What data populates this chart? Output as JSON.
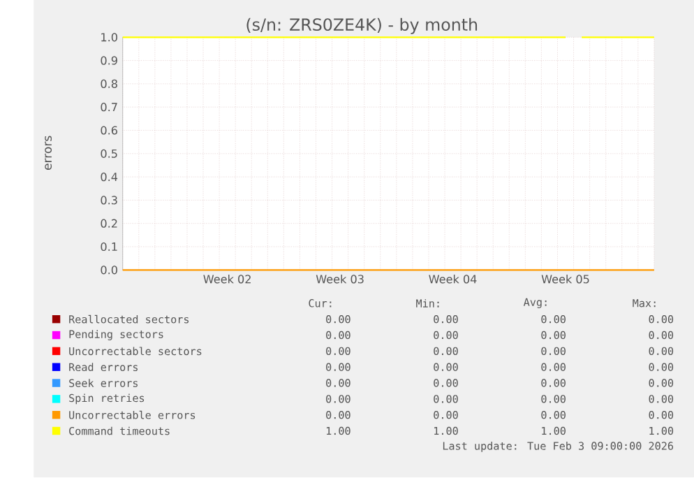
{
  "chart_data": {
    "type": "line",
    "title": "(s/n: ZRS0ZE4K) - by month",
    "ylabel": "errors",
    "categories": [
      null,
      null,
      null,
      null,
      null,
      null,
      null,
      null,
      null,
      null,
      null,
      null,
      null,
      "Week 02",
      null,
      null,
      null,
      null,
      null,
      null,
      null,
      null,
      null,
      null,
      null,
      null,
      null,
      "Week 03",
      null,
      null,
      null,
      null,
      null,
      null,
      null,
      null,
      null,
      null,
      null,
      null,
      null,
      "Week 04",
      null,
      null,
      null,
      null,
      null,
      null,
      null,
      null,
      null,
      null,
      null,
      null,
      null,
      "Week 05",
      null,
      null,
      null,
      null,
      null,
      null,
      null,
      null,
      null,
      null,
      null
    ],
    "ylim": [
      0,
      1
    ],
    "yticks": [
      {
        "value": 0,
        "label": "0.0"
      },
      {
        "value": 0.1,
        "label": "0.1"
      },
      {
        "value": 0.2,
        "label": "0.2"
      },
      {
        "value": 0.3,
        "label": "0.3"
      },
      {
        "value": 0.4,
        "label": "0.4"
      },
      {
        "value": 0.5,
        "label": "0.5"
      },
      {
        "value": 0.6,
        "label": "0.6"
      },
      {
        "value": 0.7,
        "label": "0.7"
      },
      {
        "value": 0.8,
        "label": "0.8"
      },
      {
        "value": 0.9,
        "label": "0.9"
      },
      {
        "value": 1,
        "label": "1.0"
      }
    ],
    "grid": true,
    "legend": "bottom",
    "series": [
      {
        "name": "Reallocated sectors",
        "color": "#990000",
        "values": [
          null,
          null,
          null,
          null,
          null,
          null,
          null,
          null,
          null,
          null,
          null,
          null,
          null,
          null,
          null,
          null,
          null,
          null,
          null,
          null,
          null,
          null,
          null,
          null,
          null,
          null,
          null,
          null,
          null,
          null,
          null,
          null,
          null,
          null,
          null,
          null,
          null,
          null,
          null,
          null,
          null,
          null,
          null,
          null,
          null,
          null,
          null,
          null,
          null,
          null,
          null,
          null,
          null,
          null,
          null,
          null,
          null,
          null,
          null,
          null,
          null,
          null,
          null,
          null,
          null,
          null,
          null
        ]
      },
      {
        "name": "Pending sectors",
        "color": "#ff00ff",
        "values": [
          null,
          null,
          null,
          null,
          null,
          null,
          null,
          null,
          null,
          null,
          null,
          null,
          null,
          null,
          null,
          null,
          null,
          null,
          null,
          null,
          null,
          null,
          null,
          null,
          null,
          null,
          null,
          null,
          null,
          null,
          null,
          null,
          null,
          null,
          null,
          null,
          null,
          null,
          null,
          null,
          null,
          null,
          null,
          null,
          null,
          null,
          null,
          null,
          null,
          null,
          null,
          null,
          null,
          null,
          null,
          null,
          null,
          null,
          null,
          null,
          null,
          null,
          null,
          null,
          null,
          null,
          null
        ]
      },
      {
        "name": "Uncorrectable sectors",
        "color": "#ff0000",
        "values": [
          null,
          null,
          null,
          null,
          null,
          null,
          null,
          null,
          null,
          null,
          null,
          null,
          null,
          null,
          null,
          null,
          null,
          null,
          null,
          null,
          null,
          null,
          null,
          null,
          null,
          null,
          null,
          null,
          null,
          null,
          null,
          null,
          null,
          null,
          null,
          null,
          null,
          null,
          null,
          null,
          null,
          null,
          null,
          null,
          null,
          null,
          null,
          null,
          null,
          null,
          null,
          null,
          null,
          null,
          null,
          null,
          null,
          null,
          null,
          null,
          null,
          null,
          null,
          null,
          null,
          null,
          null
        ]
      },
      {
        "name": "Read errors",
        "color": "#0000ff",
        "values": [
          null,
          null,
          null,
          null,
          null,
          null,
          null,
          null,
          null,
          null,
          null,
          null,
          null,
          null,
          null,
          null,
          null,
          null,
          null,
          null,
          null,
          null,
          null,
          null,
          null,
          null,
          null,
          null,
          null,
          null,
          null,
          null,
          null,
          null,
          null,
          null,
          null,
          null,
          null,
          null,
          null,
          null,
          null,
          null,
          null,
          null,
          null,
          null,
          null,
          null,
          null,
          null,
          null,
          null,
          null,
          null,
          null,
          null,
          null,
          null,
          null,
          null,
          null,
          null,
          null,
          null,
          null
        ]
      },
      {
        "name": "Seek errors",
        "color": "#3399ff",
        "values": [
          null,
          null,
          null,
          null,
          null,
          null,
          null,
          null,
          null,
          null,
          null,
          null,
          null,
          null,
          null,
          null,
          null,
          null,
          null,
          null,
          null,
          null,
          null,
          null,
          null,
          null,
          null,
          null,
          null,
          null,
          null,
          null,
          null,
          null,
          null,
          null,
          null,
          null,
          null,
          null,
          null,
          null,
          null,
          null,
          null,
          null,
          null,
          null,
          null,
          null,
          null,
          null,
          null,
          null,
          null,
          null,
          null,
          null,
          null,
          null,
          null,
          null,
          null,
          null,
          null,
          null,
          null
        ]
      },
      {
        "name": "Spin retries",
        "color": "#00ffff",
        "values": [
          null,
          null,
          null,
          null,
          null,
          null,
          null,
          null,
          null,
          null,
          null,
          null,
          null,
          null,
          null,
          null,
          null,
          null,
          null,
          null,
          null,
          null,
          null,
          null,
          null,
          null,
          null,
          null,
          null,
          null,
          null,
          null,
          null,
          null,
          null,
          null,
          null,
          null,
          null,
          null,
          null,
          null,
          null,
          null,
          null,
          null,
          null,
          null,
          null,
          null,
          null,
          null,
          null,
          null,
          null,
          null,
          null,
          null,
          null,
          null,
          null,
          null,
          null,
          null,
          null,
          null,
          null
        ]
      },
      {
        "name": "Uncorrectable errors",
        "color": "#ff9900",
        "values": [
          0,
          0,
          0,
          0,
          0,
          0,
          0,
          0,
          0,
          0,
          0,
          0,
          0,
          0,
          0,
          0,
          0,
          0,
          0,
          0,
          0,
          0,
          0,
          0,
          0,
          0,
          0,
          0,
          0,
          0,
          0,
          0,
          0,
          0,
          0,
          0,
          0,
          0,
          0,
          0,
          0,
          0,
          0,
          0,
          0,
          0,
          0,
          0,
          0,
          0,
          0,
          0,
          0,
          0,
          0,
          0,
          0,
          0,
          0,
          0,
          0,
          0,
          0,
          0,
          0,
          0,
          0
        ]
      },
      {
        "name": "Command timeouts",
        "color": "#ffff00",
        "values": [
          1,
          1,
          1,
          1,
          1,
          1,
          1,
          1,
          1,
          1,
          1,
          1,
          1,
          1,
          1,
          1,
          1,
          1,
          1,
          1,
          1,
          1,
          1,
          1,
          1,
          1,
          1,
          1,
          1,
          1,
          1,
          1,
          1,
          1,
          1,
          1,
          1,
          1,
          1,
          1,
          1,
          1,
          1,
          1,
          1,
          1,
          1,
          1,
          1,
          1,
          1,
          1,
          1,
          1,
          1,
          1,
          null,
          1,
          1,
          1,
          1,
          1,
          1,
          1,
          1,
          1,
          1
        ]
      }
    ],
    "annotations": [
      "Cur:",
      "Min:",
      "Avg:",
      "Max:",
      "0.00",
      "0.00",
      "0.00",
      "0.00",
      "0.00",
      "0.00",
      "0.00",
      "0.00",
      "0.00",
      "0.00",
      "0.00",
      "0.00",
      "0.00",
      "0.00",
      "0.00",
      "0.00",
      "0.00",
      "0.00",
      "0.00",
      "0.00",
      "0.00",
      "0.00",
      "0.00",
      "0.00",
      "0.00",
      "0.00",
      "0.00",
      "0.00",
      "1.00",
      "1.00",
      "1.00",
      "1.00",
      "Last update: Tue Feb  3 09:00:00 2026"
    ]
  }
}
